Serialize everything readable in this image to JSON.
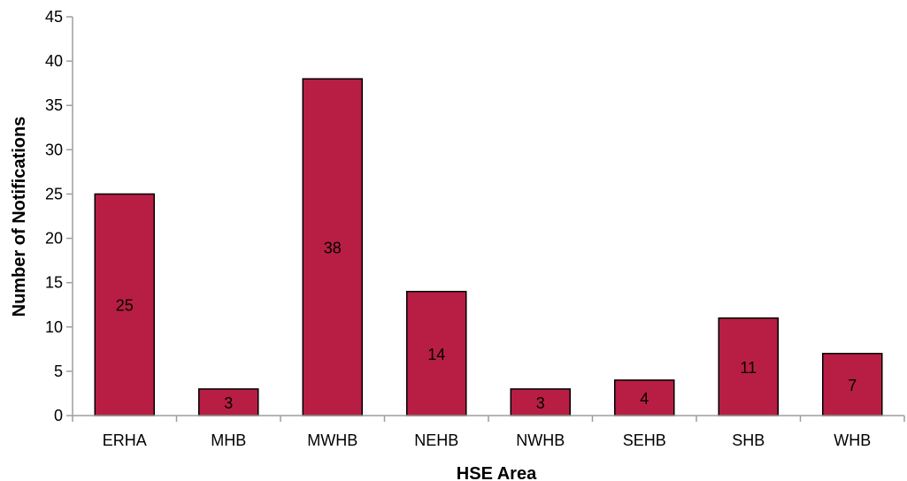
{
  "chart_data": {
    "type": "bar",
    "xlabel": "HSE Area",
    "ylabel": "Number of Notifications",
    "categories": [
      "ERHA",
      "MHB",
      "MWHB",
      "NEHB",
      "NWHB",
      "SEHB",
      "SHB",
      "WHB"
    ],
    "values": [
      25,
      3,
      38,
      14,
      3,
      4,
      11,
      7
    ],
    "data_labels": [
      "25",
      "3",
      "38",
      "14",
      "3",
      "4",
      "11",
      "7"
    ],
    "ylim": [
      0,
      45
    ],
    "yticks": [
      0,
      5,
      10,
      15,
      20,
      25,
      30,
      35,
      40,
      45
    ],
    "grid": false,
    "bar_color": "#b81e43",
    "bar_edge_color": "#000000",
    "axis_color": "#9e9e9e"
  }
}
